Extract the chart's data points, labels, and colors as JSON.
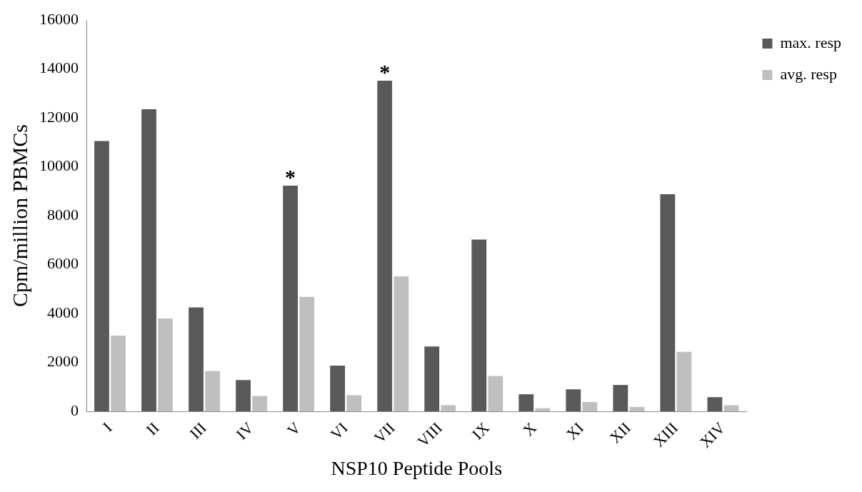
{
  "chart_data": {
    "type": "bar",
    "xlabel": "NSP10 Peptide Pools",
    "ylabel": "Cpm/million PBMCs",
    "categories": [
      "I",
      "II",
      "III",
      "IV",
      "V",
      "VI",
      "VII",
      "VIII",
      "IX",
      "X",
      "XI",
      "XII",
      "XIII",
      "XIV"
    ],
    "series": [
      {
        "name": "max. resp",
        "color": "#595959",
        "values": [
          11050,
          12350,
          4250,
          1280,
          9230,
          1870,
          13520,
          2650,
          7020,
          700,
          900,
          1080,
          8880,
          580
        ]
      },
      {
        "name": "avg. resp",
        "color": "#bfbfbf",
        "values": [
          3100,
          3800,
          1650,
          630,
          4680,
          660,
          5520,
          250,
          1450,
          130,
          380,
          180,
          2430,
          250
        ]
      }
    ],
    "ylim": [
      0,
      16000
    ],
    "yticks": [
      0,
      2000,
      4000,
      6000,
      8000,
      10000,
      12000,
      14000,
      16000
    ],
    "grid": false,
    "legend": "top right",
    "annotations": [
      {
        "text": "*",
        "x": "V",
        "y": 9230
      },
      {
        "text": "*",
        "x": "VII",
        "y": 13520
      }
    ]
  }
}
